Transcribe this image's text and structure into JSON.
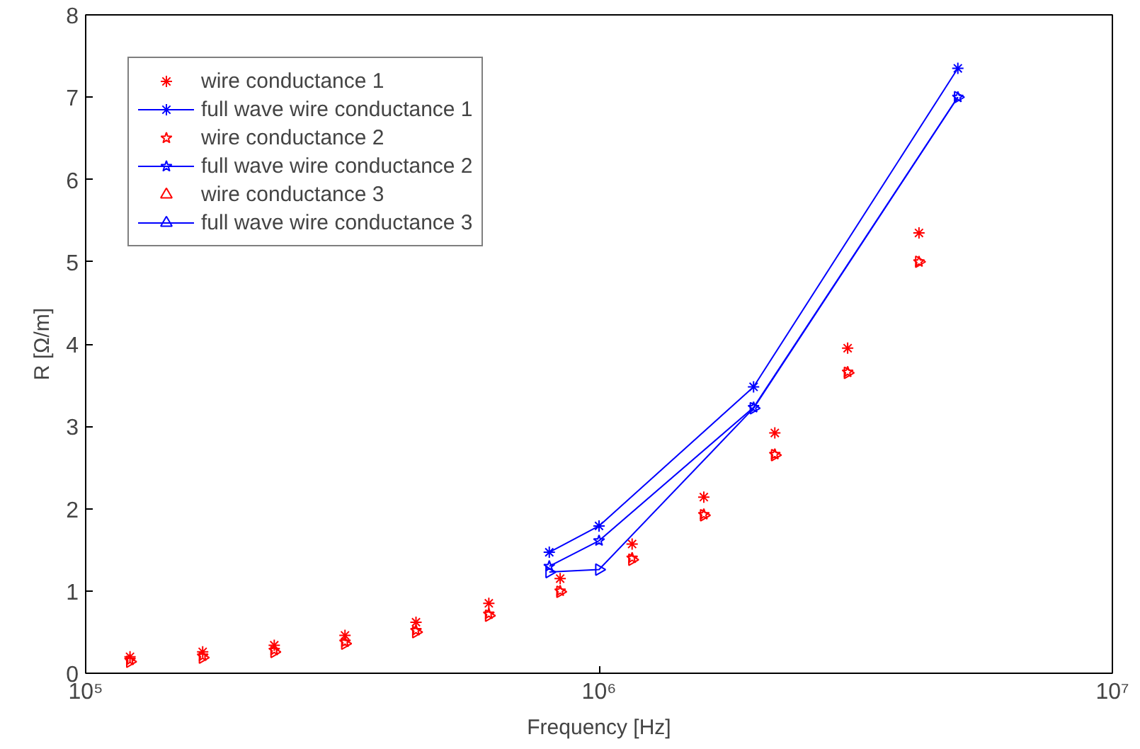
{
  "chart_data": {
    "type": "scatter",
    "xlabel": "Frequency [Hz]",
    "ylabel": "R [Ω/m]",
    "log": "x",
    "xlim": [
      100000,
      10000000
    ],
    "xticks": [
      {
        "value": 100000,
        "label": "10⁵"
      },
      {
        "value": 1000000,
        "label": "10⁶"
      },
      {
        "value": 10000000,
        "label": "10⁷"
      }
    ],
    "ylim": [
      0,
      8
    ],
    "yticks": [
      0,
      1,
      2,
      3,
      4,
      5,
      6,
      7,
      8
    ],
    "grid": false,
    "legend": "top left",
    "series": [
      {
        "name": "wire conductance 1",
        "marker": "cross",
        "color": "#ff0000",
        "x": [
          122000,
          169000,
          233000,
          320000,
          440000,
          610000,
          840000,
          1160000,
          1600000,
          2200000,
          3050000,
          4200000
        ],
        "values": [
          0.2,
          0.26,
          0.34,
          0.46,
          0.62,
          0.85,
          1.15,
          1.57,
          2.14,
          2.92,
          3.95,
          5.35
        ]
      },
      {
        "name": "full wave wire conductance 1",
        "type": "line",
        "marker": "cross",
        "color": "#0000ff",
        "x": [
          800000,
          1000000,
          2000000,
          5000000
        ],
        "values": [
          1.47,
          1.79,
          3.48,
          7.35
        ]
      },
      {
        "name": "wire conductance 2",
        "marker": "star",
        "color": "#ff0000",
        "x": [
          122000,
          169000,
          233000,
          320000,
          440000,
          610000,
          840000,
          1160000,
          1600000,
          2200000,
          3050000,
          4200000
        ],
        "values": [
          0.16,
          0.21,
          0.28,
          0.38,
          0.52,
          0.72,
          1.0,
          1.4,
          1.93,
          2.66,
          3.66,
          5.0
        ]
      },
      {
        "name": "full wave wire conductance 2",
        "type": "line",
        "marker": "star",
        "color": "#0000ff",
        "x": [
          800000,
          1000000,
          2000000,
          5000000
        ],
        "values": [
          1.3,
          1.61,
          3.23,
          7.0
        ]
      },
      {
        "name": "wire conductance 3",
        "marker": "triangle",
        "color": "#ff0000",
        "x": [
          122000,
          169000,
          233000,
          320000,
          440000,
          610000,
          840000,
          1160000,
          1600000,
          2200000,
          3050000,
          4200000
        ],
        "values": [
          0.14,
          0.19,
          0.26,
          0.36,
          0.5,
          0.7,
          0.99,
          1.38,
          1.92,
          2.65,
          3.65,
          5.0
        ]
      },
      {
        "name": "full wave wire conductance 3",
        "type": "line",
        "marker": "triangle",
        "color": "#0000ff",
        "x": [
          800000,
          1000000,
          2000000,
          5000000
        ],
        "values": [
          1.23,
          1.26,
          3.22,
          7.0
        ]
      }
    ]
  }
}
